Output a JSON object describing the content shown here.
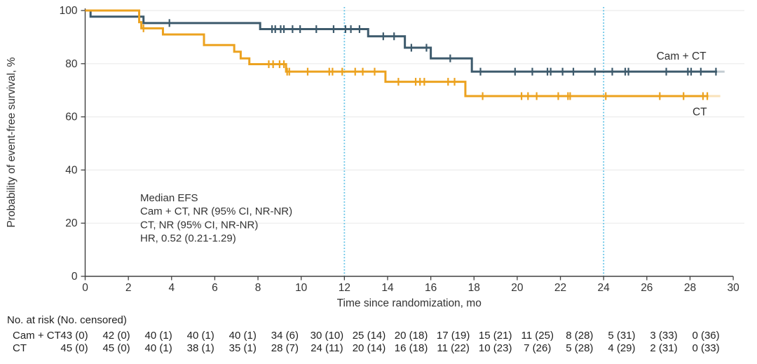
{
  "chart_data": {
    "type": "line",
    "variant": "kaplan_meier_step",
    "title": "",
    "xlabel": "Time since randomization, mo",
    "ylabel": "Probability of event-free survival, %",
    "xlim": [
      0,
      30
    ],
    "ylim": [
      0,
      100
    ],
    "xticks": [
      0,
      2,
      4,
      6,
      8,
      10,
      12,
      14,
      16,
      18,
      20,
      22,
      24,
      26,
      28,
      30
    ],
    "yticks": [
      0,
      20,
      40,
      60,
      80,
      100
    ],
    "grid": {
      "horizontal": true,
      "color": "#ececec"
    },
    "axis_color": "#404040",
    "text_color": "#333333",
    "reference_lines": {
      "x_values": [
        12,
        24
      ],
      "style": "dotted",
      "color": "#5ec1e6"
    },
    "annotation": {
      "lines": [
        "Median EFS",
        "Cam + CT, NR (95% CI, NR-NR)",
        "CT, NR (95% CI, NR-NR)",
        "HR, 0.52 (0.21-1.29)"
      ]
    },
    "series": [
      {
        "name": "Cam + CT",
        "color": "#3d5a6c",
        "steps": [
          [
            0,
            100
          ],
          [
            0.25,
            97.7
          ],
          [
            2.7,
            95.3
          ],
          [
            8.1,
            93.0
          ],
          [
            13.1,
            90.3
          ],
          [
            14.8,
            86.0
          ],
          [
            16.0,
            82.0
          ],
          [
            17.9,
            77.0
          ]
        ],
        "end_t": 29.25,
        "tail_t": 29.6,
        "censor_times": [
          3.9,
          8.65,
          8.8,
          9.05,
          9.2,
          9.6,
          9.95,
          10.7,
          11.5,
          12.05,
          12.3,
          12.7,
          13.8,
          14.3,
          15.1,
          15.8,
          16.9,
          18.3,
          19.9,
          20.7,
          21.4,
          21.55,
          22.1,
          22.6,
          23.6,
          24.4,
          25.0,
          25.15,
          26.9,
          27.9,
          28.05,
          28.5,
          29.2
        ],
        "label_anchor": {
          "t": 27.6,
          "pct": 81.5
        }
      },
      {
        "name": "CT",
        "color": "#eca21f",
        "steps": [
          [
            0,
            100
          ],
          [
            2.5,
            95.6
          ],
          [
            2.6,
            93.3
          ],
          [
            3.6,
            91.0
          ],
          [
            5.5,
            87.0
          ],
          [
            6.9,
            84.5
          ],
          [
            7.2,
            82.0
          ],
          [
            7.6,
            79.8
          ],
          [
            9.3,
            77.0
          ],
          [
            13.9,
            73.2
          ],
          [
            17.6,
            67.8
          ]
        ],
        "end_t": 28.85,
        "tail_t": 29.4,
        "censor_times": [
          2.7,
          8.5,
          8.7,
          9.0,
          9.2,
          9.35,
          9.45,
          10.3,
          11.3,
          11.45,
          11.9,
          12.5,
          12.85,
          13.4,
          14.5,
          15.3,
          15.5,
          15.7,
          16.8,
          17.1,
          18.4,
          20.2,
          20.5,
          20.9,
          21.9,
          22.35,
          22.45,
          24.1,
          26.6,
          27.7,
          28.6,
          28.8
        ],
        "label_anchor": {
          "t": 28.45,
          "pct": 60.5
        }
      }
    ]
  },
  "risk_table": {
    "title": "No. at risk (No. censored)",
    "time_points": [
      0,
      2,
      4,
      6,
      8,
      10,
      12,
      14,
      16,
      18,
      20,
      22,
      24,
      26,
      28,
      30
    ],
    "rows": [
      {
        "label": "Cam + CT",
        "values": [
          "43 (0)",
          "42 (0)",
          "40 (1)",
          "40 (1)",
          "40 (1)",
          "34 (6)",
          "30 (10)",
          "25 (14)",
          "20 (18)",
          "17 (19)",
          "15 (21)",
          "11 (25)",
          "8 (28)",
          "5 (31)",
          "3 (33)",
          "0 (36)"
        ]
      },
      {
        "label": "CT",
        "values": [
          "45 (0)",
          "45 (0)",
          "40 (1)",
          "38 (1)",
          "35 (1)",
          "28 (7)",
          "24 (11)",
          "20 (14)",
          "16 (18)",
          "11 (22)",
          "10 (23)",
          "7 (26)",
          "5 (28)",
          "4 (29)",
          "2 (31)",
          "0 (33)"
        ]
      }
    ]
  }
}
